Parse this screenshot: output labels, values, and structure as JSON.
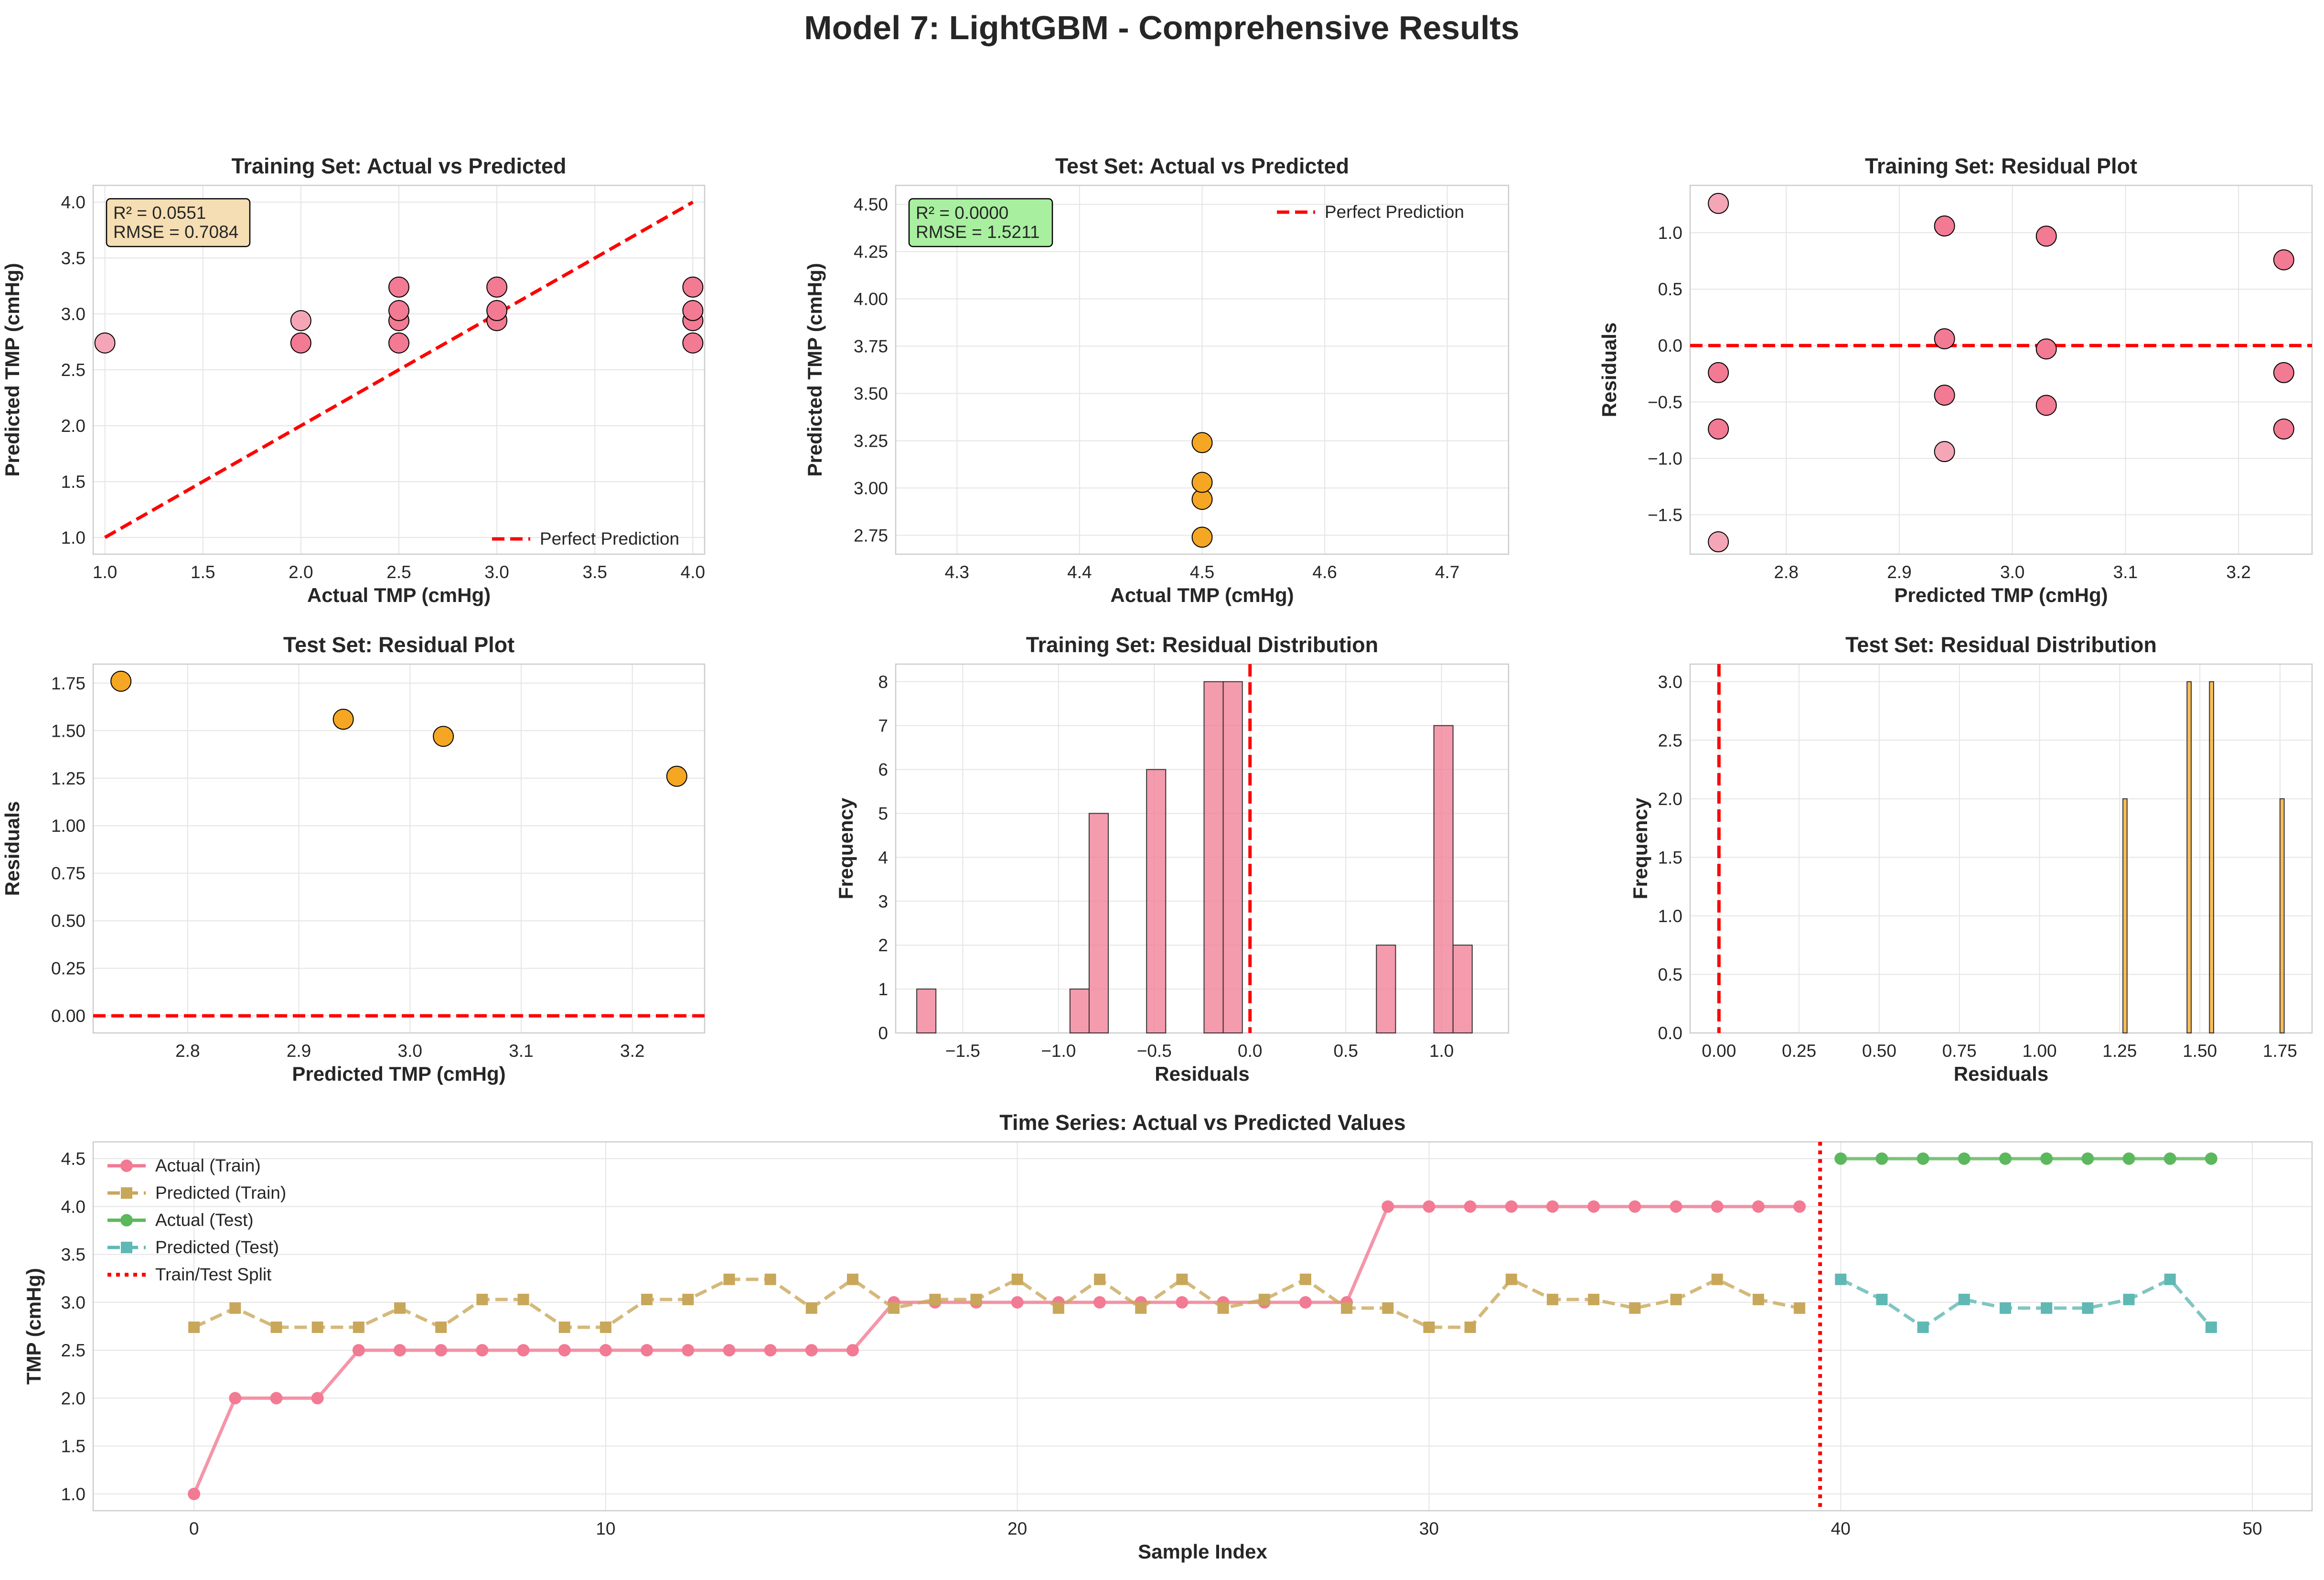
{
  "title": "Model 7: LightGBM - Comprehensive Results",
  "colors": {
    "pink": "#f27a93",
    "pink_light": "#f4a6b6",
    "orange": "#f5a623",
    "red_line": "#ff0000",
    "tan": "#c9a75a",
    "green": "#5cb85c",
    "teal": "#5fb8b3",
    "wheat": "#f5deb3",
    "lightgreen": "#a8efa0"
  },
  "chart_data": [
    {
      "id": "train_scatter",
      "type": "scatter",
      "title": "Training Set: Actual vs Predicted",
      "xlabel": "Actual TMP (cmHg)",
      "ylabel": "Predicted TMP (cmHg)",
      "xlim": [
        0.94,
        4.06
      ],
      "ylim": [
        0.85,
        4.15
      ],
      "xticks": [
        "1.0",
        "1.5",
        "2.0",
        "2.5",
        "3.0",
        "3.5",
        "4.0"
      ],
      "yticks": [
        "1.0",
        "1.5",
        "2.0",
        "2.5",
        "3.0",
        "3.5",
        "4.0"
      ],
      "points": [
        [
          1.0,
          2.74
        ],
        [
          2.0,
          2.74
        ],
        [
          2.0,
          2.94
        ],
        [
          2.5,
          2.74
        ],
        [
          2.5,
          2.94
        ],
        [
          2.5,
          3.03
        ],
        [
          2.5,
          3.24
        ],
        [
          3.0,
          2.94
        ],
        [
          3.0,
          3.03
        ],
        [
          3.0,
          3.24
        ],
        [
          4.0,
          2.74
        ],
        [
          4.0,
          2.94
        ],
        [
          4.0,
          3.03
        ],
        [
          4.0,
          3.24
        ]
      ],
      "reference_line": {
        "label": "Perfect Prediction",
        "from": [
          1,
          1
        ],
        "to": [
          4,
          4
        ]
      },
      "stats": [
        "R² = 0.0551",
        "RMSE = 0.7084"
      ],
      "legend_position": "lower-right"
    },
    {
      "id": "test_scatter",
      "type": "scatter",
      "title": "Test Set: Actual vs Predicted",
      "xlabel": "Actual TMP (cmHg)",
      "ylabel": "Predicted TMP (cmHg)",
      "xlim": [
        4.25,
        4.75
      ],
      "ylim": [
        2.65,
        4.6
      ],
      "xticks": [
        "4.3",
        "4.4",
        "4.5",
        "4.6",
        "4.7"
      ],
      "yticks": [
        "2.75",
        "3.00",
        "3.25",
        "3.50",
        "3.75",
        "4.00",
        "4.25",
        "4.50"
      ],
      "points": [
        [
          4.5,
          2.74
        ],
        [
          4.5,
          2.94
        ],
        [
          4.5,
          3.03
        ],
        [
          4.5,
          3.24
        ]
      ],
      "reference_line": {
        "label": "Perfect Prediction"
      },
      "stats": [
        "R² = 0.0000",
        "RMSE = 1.5211"
      ],
      "legend_position": "upper-right"
    },
    {
      "id": "train_resid",
      "type": "scatter",
      "title": "Training Set: Residual Plot",
      "xlabel": "Predicted TMP (cmHg)",
      "ylabel": "Residuals",
      "xlim": [
        2.715,
        3.265
      ],
      "ylim": [
        -1.85,
        1.42
      ],
      "xticks": [
        "2.8",
        "2.9",
        "3.0",
        "3.1",
        "3.2"
      ],
      "yticks": [
        "−1.5",
        "−1.0",
        "−0.5",
        "0.0",
        "0.5",
        "1.0"
      ],
      "points": [
        [
          2.74,
          1.26
        ],
        [
          2.74,
          -0.24
        ],
        [
          2.74,
          -0.74
        ],
        [
          2.74,
          -1.74
        ],
        [
          2.94,
          1.06
        ],
        [
          2.94,
          0.06
        ],
        [
          2.94,
          -0.44
        ],
        [
          2.94,
          -0.94
        ],
        [
          3.03,
          0.97
        ],
        [
          3.03,
          -0.03
        ],
        [
          3.03,
          -0.53
        ],
        [
          3.24,
          0.76
        ],
        [
          3.24,
          -0.24
        ],
        [
          3.24,
          -0.74
        ]
      ],
      "hline": 0
    },
    {
      "id": "test_resid",
      "type": "scatter",
      "title": "Test Set: Residual Plot",
      "xlabel": "Predicted TMP (cmHg)",
      "ylabel": "Residuals",
      "xlim": [
        2.715,
        3.265
      ],
      "ylim": [
        -0.09,
        1.85
      ],
      "xticks": [
        "2.8",
        "2.9",
        "3.0",
        "3.1",
        "3.2"
      ],
      "yticks": [
        "0.00",
        "0.25",
        "0.50",
        "0.75",
        "1.00",
        "1.25",
        "1.50",
        "1.75"
      ],
      "points": [
        [
          2.74,
          1.76
        ],
        [
          2.94,
          1.56
        ],
        [
          3.03,
          1.47
        ],
        [
          3.24,
          1.26
        ]
      ],
      "hline": 0
    },
    {
      "id": "train_hist",
      "type": "bar",
      "title": "Training Set: Residual Distribution",
      "xlabel": "Residuals",
      "ylabel": "Frequency",
      "xlim": [
        -1.85,
        1.35
      ],
      "ylim": [
        0,
        8.4
      ],
      "xticks": [
        "−1.5",
        "−1.0",
        "−0.5",
        "0.0",
        "0.5",
        "1.0"
      ],
      "yticks": [
        "0",
        "1",
        "2",
        "3",
        "4",
        "5",
        "6",
        "7",
        "8"
      ],
      "bin_width": 0.1,
      "bins": [
        [
          -1.74,
          1
        ],
        [
          -0.94,
          1
        ],
        [
          -0.84,
          5
        ],
        [
          -0.54,
          6
        ],
        [
          -0.24,
          8
        ],
        [
          -0.14,
          8
        ],
        [
          0.66,
          2
        ],
        [
          0.96,
          7
        ],
        [
          1.06,
          2
        ]
      ],
      "vline": 0
    },
    {
      "id": "test_hist",
      "type": "bar",
      "title": "Test Set: Residual Distribution",
      "xlabel": "Residuals",
      "ylabel": "Frequency",
      "xlim": [
        -0.09,
        1.85
      ],
      "ylim": [
        0,
        3.15
      ],
      "xticks": [
        "0.00",
        "0.25",
        "0.50",
        "0.75",
        "1.00",
        "1.25",
        "1.50",
        "1.75"
      ],
      "yticks": [
        "0.0",
        "0.5",
        "1.0",
        "1.5",
        "2.0",
        "2.5",
        "3.0"
      ],
      "bin_width": 0.013,
      "bins": [
        [
          1.26,
          2
        ],
        [
          1.46,
          3
        ],
        [
          1.53,
          3
        ],
        [
          1.75,
          2
        ]
      ],
      "vline": 0
    },
    {
      "id": "timeseries",
      "type": "line",
      "title": "Time Series: Actual vs Predicted Values",
      "xlabel": "Sample Index",
      "ylabel": "TMP (cmHg)",
      "xlim": [
        -2.45,
        51.45
      ],
      "ylim": [
        0.825,
        4.675
      ],
      "xticks": [
        "0",
        "10",
        "20",
        "30",
        "40",
        "50"
      ],
      "yticks": [
        "1.0",
        "1.5",
        "2.0",
        "2.5",
        "3.0",
        "3.5",
        "4.0",
        "4.5"
      ],
      "split_x": 39.5,
      "legend_position": "upper-left",
      "series": [
        {
          "name": "Actual (Train)",
          "x_start": 0,
          "values": [
            1,
            2,
            2,
            2,
            2.5,
            2.5,
            2.5,
            2.5,
            2.5,
            2.5,
            2.5,
            2.5,
            2.5,
            2.5,
            2.5,
            2.5,
            2.5,
            3,
            3,
            3,
            3,
            3,
            3,
            3,
            3,
            3,
            3,
            3,
            3,
            4,
            4,
            4,
            4,
            4,
            4,
            4,
            4,
            4,
            4,
            4
          ]
        },
        {
          "name": "Predicted (Train)",
          "x_start": 0,
          "values": [
            2.74,
            2.94,
            2.74,
            2.74,
            2.74,
            2.94,
            2.74,
            3.03,
            3.03,
            2.74,
            2.74,
            3.03,
            3.03,
            3.24,
            3.24,
            2.94,
            3.24,
            2.94,
            3.03,
            3.03,
            3.24,
            2.94,
            3.24,
            2.94,
            3.24,
            2.94,
            3.03,
            3.24,
            2.94,
            2.94,
            2.74,
            2.74,
            3.24,
            3.03,
            3.03,
            2.94,
            3.03,
            3.24,
            3.03,
            2.94
          ]
        },
        {
          "name": "Actual (Test)",
          "x_start": 40,
          "values": [
            4.5,
            4.5,
            4.5,
            4.5,
            4.5,
            4.5,
            4.5,
            4.5,
            4.5,
            4.5
          ]
        },
        {
          "name": "Predicted (Test)",
          "x_start": 40,
          "values": [
            3.24,
            3.03,
            2.74,
            3.03,
            2.94,
            2.94,
            2.94,
            3.03,
            3.24,
            2.74
          ]
        },
        {
          "name": "Train/Test Split"
        }
      ]
    }
  ]
}
